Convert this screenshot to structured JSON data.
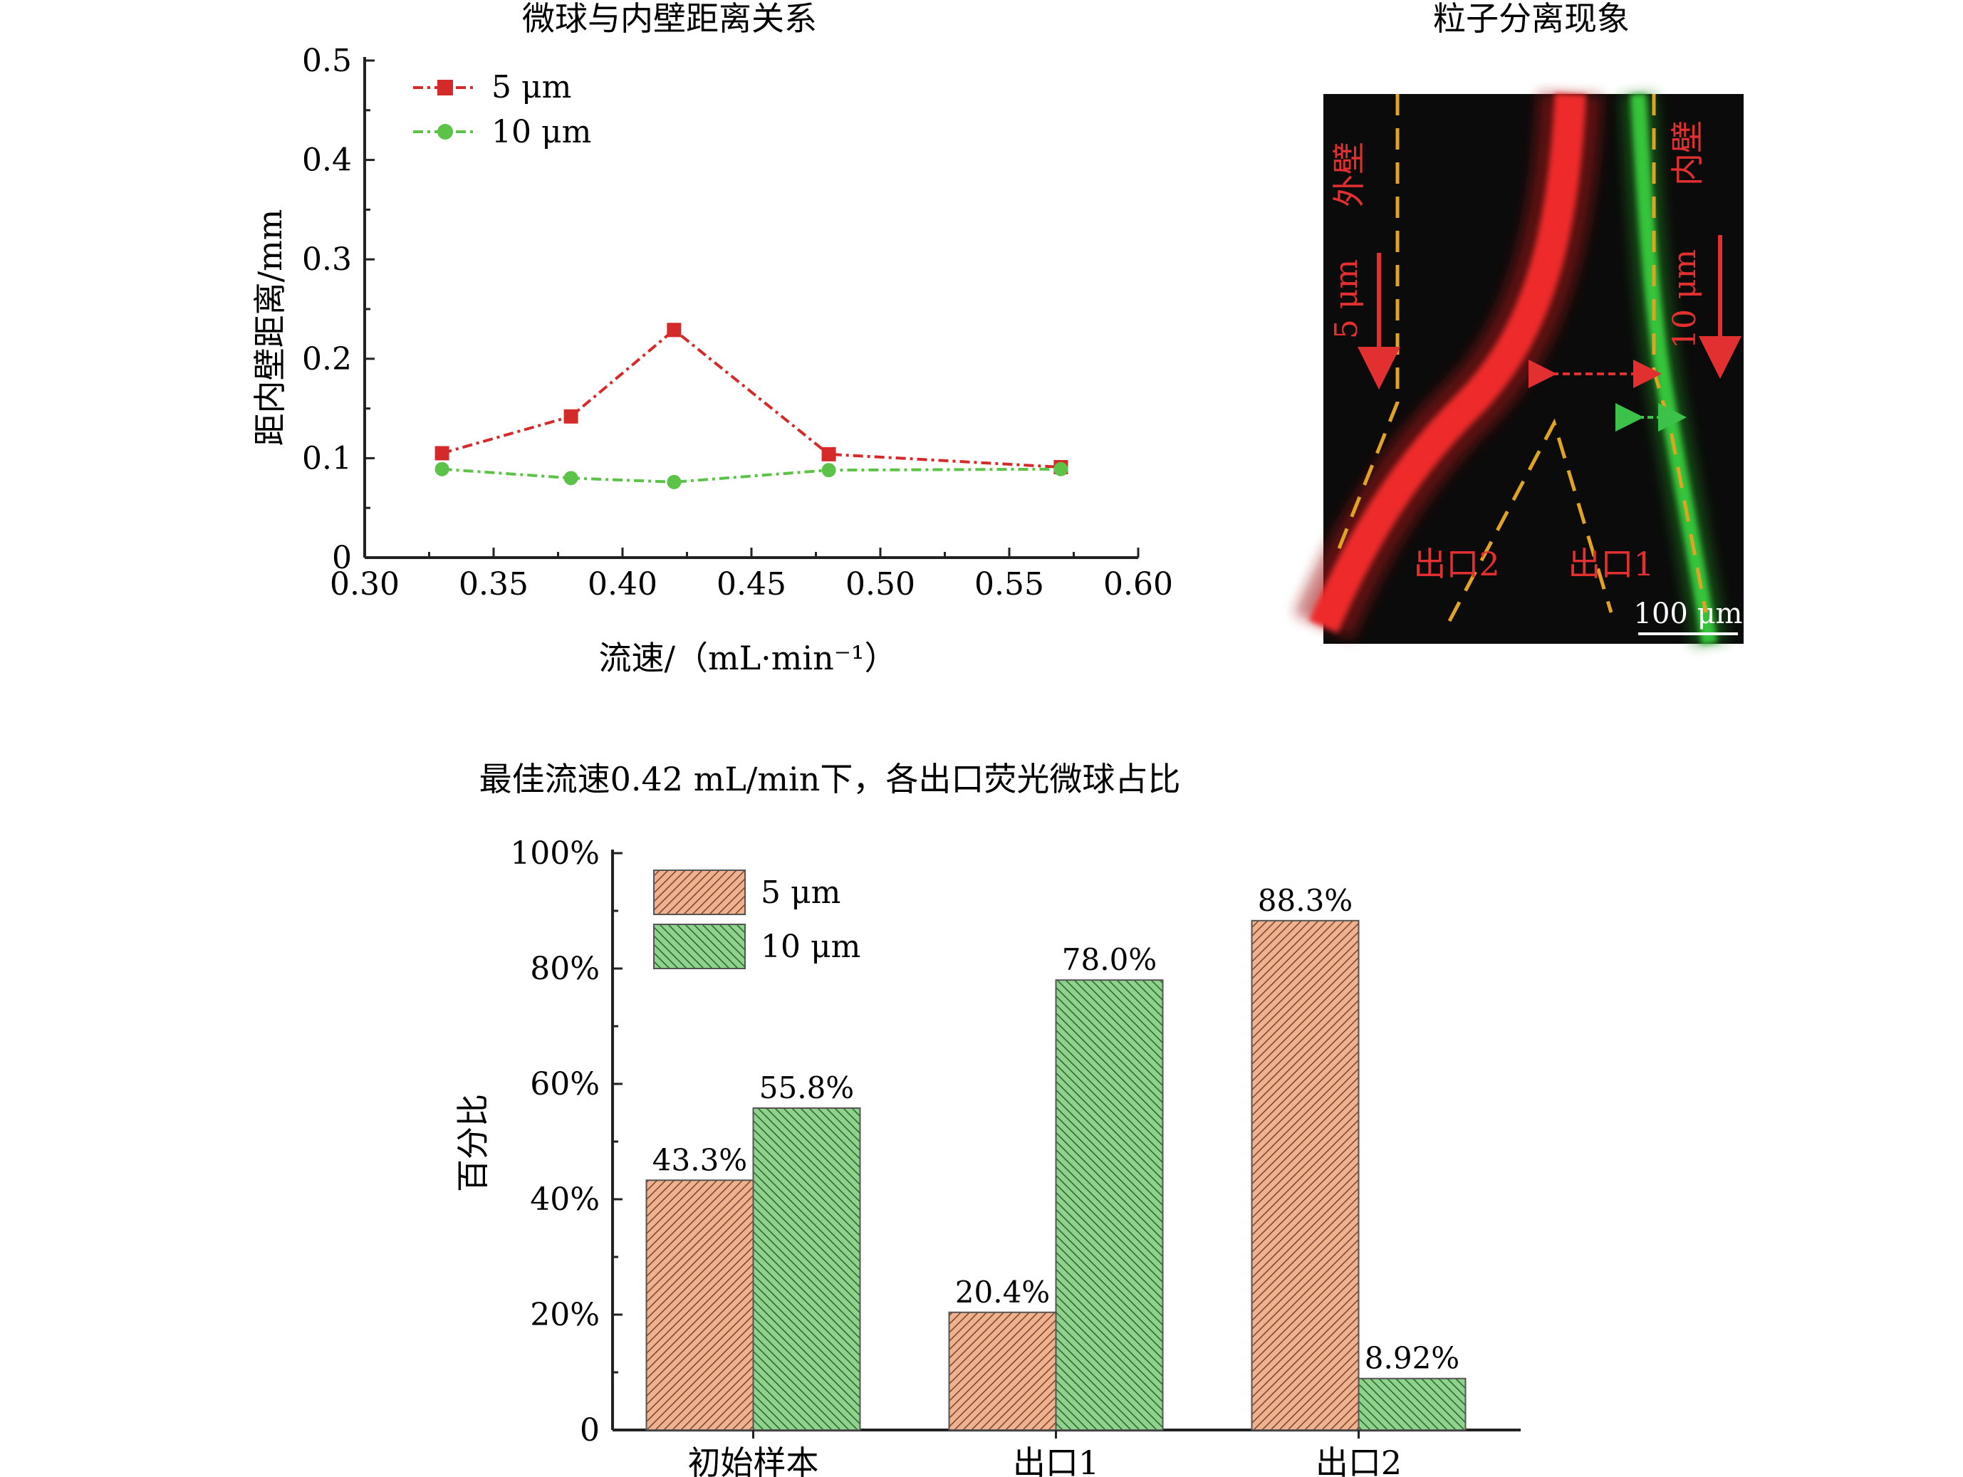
{
  "chart_data": [
    {
      "type": "line",
      "title": "微球与内壁距离关系",
      "xlabel": "流速/（mL·min⁻¹）",
      "ylabel": "距内壁距离/mm",
      "xlim": [
        0.3,
        0.6
      ],
      "ylim": [
        0,
        0.5
      ],
      "xticks": [
        "0.30",
        "0.35",
        "0.40",
        "0.45",
        "0.50",
        "0.55",
        "0.60"
      ],
      "yticks": [
        "0",
        "0.1",
        "0.2",
        "0.3",
        "0.4",
        "0.5"
      ],
      "x": [
        0.33,
        0.38,
        0.42,
        0.48,
        0.57
      ],
      "series": [
        {
          "name": "5 μm",
          "values": [
            0.105,
            0.142,
            0.229,
            0.104,
            0.091
          ],
          "color": "#d42a2a",
          "marker": "square"
        },
        {
          "name": "10 μm",
          "values": [
            0.089,
            0.08,
            0.076,
            0.088,
            0.089
          ],
          "color": "#5cc248",
          "marker": "circle"
        }
      ],
      "legend_position": "top-left"
    },
    {
      "type": "image",
      "title": "粒子分离现象",
      "labels": {
        "outer_wall": "外壁",
        "inner_wall": "内壁",
        "particle_small": "5 μm",
        "particle_large": "10 μm",
        "outlet2": "出口2",
        "outlet1": "出口1",
        "scale_bar": "100 μm"
      },
      "colors": {
        "small": "#e02626",
        "large": "#2fbf2f",
        "wall": "#e0a324",
        "background": "#0b0b0b"
      }
    },
    {
      "type": "bar",
      "title": "最佳流速0.42 mL/min下，各出口荧光微球占比",
      "ylabel": "百分比",
      "categories": [
        "初始样本",
        "出口1",
        "出口2"
      ],
      "ylim": [
        0,
        100
      ],
      "yticks": [
        "0",
        "20%",
        "40%",
        "60%",
        "80%",
        "100%"
      ],
      "series": [
        {
          "name": "5 μm",
          "values": [
            43.3,
            20.4,
            88.3
          ],
          "labels": [
            "43.3%",
            "20.4%",
            "88.3%"
          ],
          "color": "#f0b18e"
        },
        {
          "name": "10 μm",
          "values": [
            55.8,
            78.0,
            8.92
          ],
          "labels": [
            "55.8%",
            "78.0%",
            "8.92%"
          ],
          "color": "#8fd28d"
        }
      ],
      "legend_position": "top-left"
    }
  ]
}
